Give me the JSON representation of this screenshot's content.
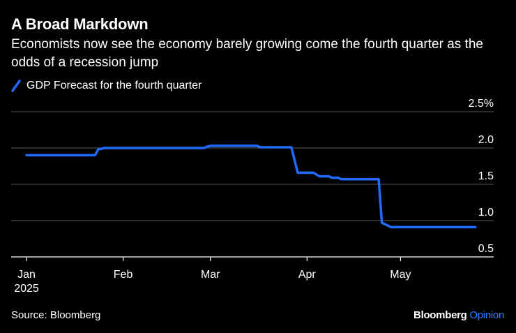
{
  "colors": {
    "background": "#000000",
    "line": "#1f6bff",
    "grid": "#5a5a5a",
    "text": "#ffffff",
    "brand_accent": "#2f7dff"
  },
  "header": {
    "title": "A Broad Markdown",
    "subtitle": "Economists now see the economy barely growing come the fourth quarter as the odds of a recession jump"
  },
  "footer": {
    "source": "Source: Bloomberg",
    "brand_main": "Bloomberg",
    "brand_accent": "Opinion"
  },
  "chart_data": {
    "type": "line",
    "title": "A Broad Markdown",
    "xlabel": "",
    "ylabel": "",
    "ylim": [
      0.5,
      2.5
    ],
    "y_ticks": [
      {
        "value": 2.5,
        "label": "2.5%"
      },
      {
        "value": 2.0,
        "label": "2.0"
      },
      {
        "value": 1.5,
        "label": "1.5"
      },
      {
        "value": 1.0,
        "label": "1.0"
      },
      {
        "value": 0.5,
        "label": "0.5"
      }
    ],
    "x_ticks": [
      {
        "date": "2025-01-01",
        "label": "Jan",
        "sublabel": "2025"
      },
      {
        "date": "2025-02-01",
        "label": "Feb"
      },
      {
        "date": "2025-03-01",
        "label": "Mar"
      },
      {
        "date": "2025-04-01",
        "label": "Apr"
      },
      {
        "date": "2025-05-01",
        "label": "May"
      }
    ],
    "xlim": [
      "2025-01-01",
      "2025-05-31"
    ],
    "grid": true,
    "legend": "top-left",
    "series": [
      {
        "name": "GDP Forecast for the fourth quarter",
        "points": [
          [
            "2025-01-01",
            1.9
          ],
          [
            "2025-01-23",
            1.9
          ],
          [
            "2025-01-24",
            1.98
          ],
          [
            "2025-01-26",
            2.0
          ],
          [
            "2025-02-27",
            2.0
          ],
          [
            "2025-02-28",
            2.02
          ],
          [
            "2025-03-01",
            2.03
          ],
          [
            "2025-03-14",
            2.03
          ],
          [
            "2025-03-16",
            2.03
          ],
          [
            "2025-03-17",
            2.01
          ],
          [
            "2025-03-27",
            2.01
          ],
          [
            "2025-03-29",
            1.66
          ],
          [
            "2025-04-03",
            1.66
          ],
          [
            "2025-04-05",
            1.61
          ],
          [
            "2025-04-08",
            1.61
          ],
          [
            "2025-04-09",
            1.59
          ],
          [
            "2025-04-11",
            1.59
          ],
          [
            "2025-04-12",
            1.57
          ],
          [
            "2025-04-24",
            1.57
          ],
          [
            "2025-04-25",
            0.97
          ],
          [
            "2025-04-28",
            0.91
          ],
          [
            "2025-05-25",
            0.91
          ]
        ]
      }
    ]
  }
}
